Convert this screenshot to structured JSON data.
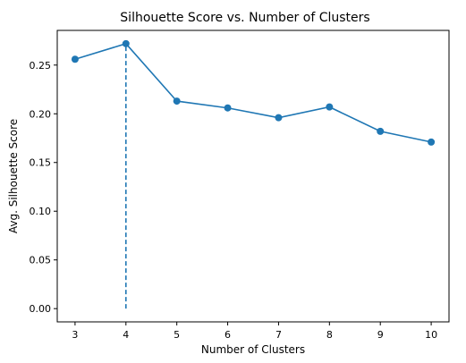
{
  "chart_data": {
    "type": "line",
    "title": "Silhouette Score vs. Number of Clusters",
    "xlabel": "Number of Clusters",
    "ylabel": "Avg. Silhouette Score",
    "x": [
      3,
      4,
      5,
      6,
      7,
      8,
      9,
      10
    ],
    "series": [
      {
        "values": [
          0.256,
          0.272,
          0.213,
          0.206,
          0.196,
          0.207,
          0.182,
          0.171
        ]
      }
    ],
    "xticks": [
      "3",
      "4",
      "5",
      "6",
      "7",
      "8",
      "9",
      "10"
    ],
    "yticks": [
      "0.00",
      "0.05",
      "0.10",
      "0.15",
      "0.20",
      "0.25"
    ],
    "xlim": [
      2.65,
      10.35
    ],
    "ylim": [
      -0.0136,
      0.2856
    ],
    "annotations": [
      {
        "type": "vertical-dashed-line",
        "x": 4,
        "y_from": 0,
        "y_to": 0.272
      }
    ],
    "grid": false,
    "colors": {
      "series": "#1f77b4",
      "axes": "#000000"
    }
  }
}
